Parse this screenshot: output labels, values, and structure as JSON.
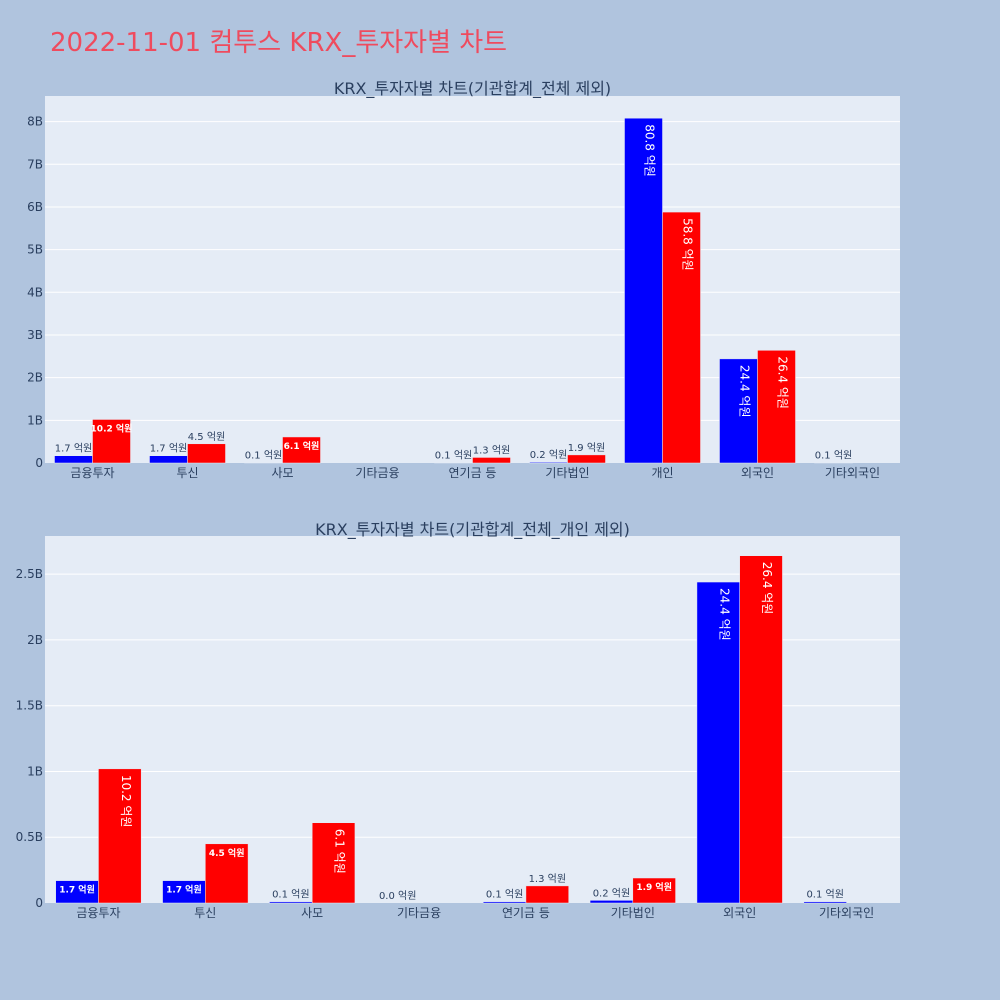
{
  "page": {
    "title": "2022-11-01 컴투스 KRX_투자자별 차트"
  },
  "colors": {
    "buy": "#0000ff",
    "sell": "#ff0000",
    "plot_bg": "#e5ecf6",
    "page_bg": "#b0c4de",
    "title": "#ef4b5e"
  },
  "chart_data": [
    {
      "type": "bar",
      "title": "KRX_투자자별 차트(기관합계_전체 제외)",
      "categories": [
        "금융투자",
        "투신",
        "사모",
        "기타금융",
        "연기금 등",
        "기타법인",
        "개인",
        "외국인",
        "기타외국인"
      ],
      "series": [
        {
          "color": "#0000ff",
          "values": [
            170000000,
            170000000,
            10000000,
            null,
            10000000,
            20000000,
            8080000000,
            2440000000,
            10000000
          ],
          "labels": [
            "1.7 억원",
            "1.7 억원",
            "0.1 억원",
            "",
            "0.1 억원",
            "0.2 억원",
            "80.8 억원",
            "24.4 억원",
            "0.1 억원"
          ]
        },
        {
          "color": "#ff0000",
          "values": [
            1020000000,
            450000000,
            610000000,
            null,
            130000000,
            190000000,
            5880000000,
            2640000000,
            null
          ],
          "labels": [
            "10.2 억원",
            "4.5 억원",
            "6.1 억원",
            "",
            "1.3 억원",
            "1.9 억원",
            "58.8 억원",
            "26.4 억원",
            ""
          ]
        }
      ],
      "ylim": [
        0,
        8600000000
      ],
      "yticks": [
        0,
        1000000000,
        2000000000,
        3000000000,
        4000000000,
        5000000000,
        6000000000,
        7000000000,
        8000000000
      ],
      "ytick_labels": [
        "0",
        "1B",
        "2B",
        "3B",
        "4B",
        "5B",
        "6B",
        "7B",
        "8B"
      ],
      "grid": true,
      "legend": "none"
    },
    {
      "type": "bar",
      "title": "KRX_투자자별 차트(기관합계_전체_개인 제외)",
      "categories": [
        "금융투자",
        "투신",
        "사모",
        "기타금융",
        "연기금 등",
        "기타법인",
        "외국인",
        "기타외국인"
      ],
      "series": [
        {
          "color": "#0000ff",
          "values": [
            170000000,
            170000000,
            10000000,
            0,
            10000000,
            20000000,
            2440000000,
            10000000
          ],
          "labels": [
            "1.7 억원",
            "1.7 억원",
            "0.1 억원",
            "0.0 억원",
            "0.1 억원",
            "0.2 억원",
            "24.4 억원",
            "0.1 억원"
          ]
        },
        {
          "color": "#ff0000",
          "values": [
            1020000000,
            450000000,
            610000000,
            null,
            130000000,
            190000000,
            2640000000,
            null
          ],
          "labels": [
            "10.2 억원",
            "4.5 억원",
            "6.1 억원",
            "",
            "1.3 억원",
            "1.9 억원",
            "26.4 억원",
            ""
          ]
        }
      ],
      "ylim": [
        0,
        2790000000
      ],
      "yticks": [
        0,
        500000000,
        1000000000,
        1500000000,
        2000000000,
        2500000000
      ],
      "ytick_labels": [
        "0",
        "0.5B",
        "1B",
        "1.5B",
        "2B",
        "2.5B"
      ],
      "grid": true,
      "legend": "none"
    }
  ]
}
